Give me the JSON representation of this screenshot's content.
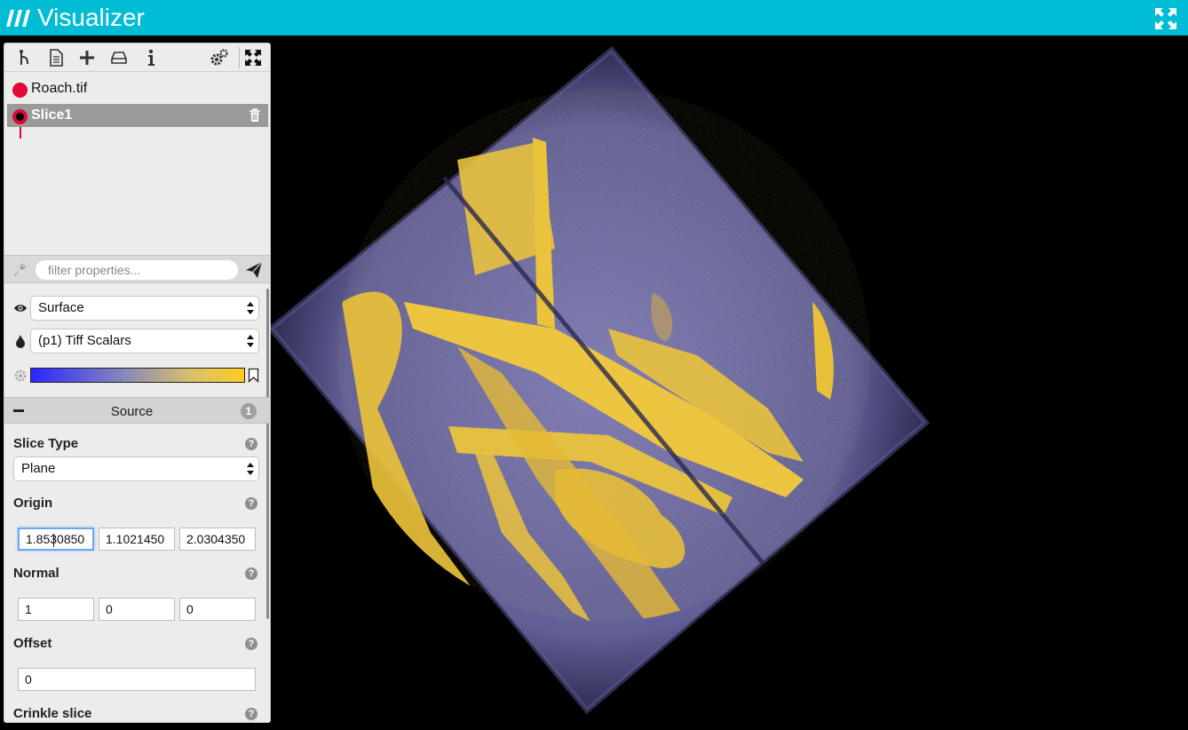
{
  "app": {
    "title": "Visualizer",
    "brand_color": "#00bcd4",
    "logo_icon": "visualizer-logo-icon",
    "fullscreen_icon": "expand-arrows-icon"
  },
  "toolbar": {
    "buttons": [
      {
        "name": "pipeline-branch",
        "icon": "branch-icon"
      },
      {
        "name": "open-file",
        "icon": "file-icon"
      },
      {
        "name": "add-filter",
        "icon": "plus-icon"
      },
      {
        "name": "save-state",
        "icon": "drive-icon"
      },
      {
        "name": "info",
        "icon": "info-icon"
      },
      {
        "name": "settings",
        "icon": "gears-icon"
      },
      {
        "name": "reset-camera",
        "icon": "fit-arrows-icon"
      }
    ]
  },
  "pipeline": {
    "items": [
      {
        "label": "Roach.tif",
        "selected": false
      },
      {
        "label": "Slice1",
        "selected": true
      }
    ],
    "link_color": "#e0073a"
  },
  "filter": {
    "placeholder": "filter properties...",
    "value": ""
  },
  "display": {
    "representation": "Surface",
    "color_by": "(p1) Tiff Scalars",
    "colormap": [
      "#2a26ff",
      "#8b8bb8",
      "#d8c06a",
      "#ffcc22"
    ]
  },
  "section": {
    "title": "Source",
    "badge": "1"
  },
  "properties": {
    "slice_type": {
      "label": "Slice Type",
      "value": "Plane"
    },
    "origin": {
      "label": "Origin",
      "values": [
        "1.8530850",
        "1.1021450",
        "2.0304350"
      ]
    },
    "normal": {
      "label": "Normal",
      "values": [
        "1",
        "0",
        "0"
      ]
    },
    "offset": {
      "label": "Offset",
      "value": "0"
    },
    "crinkle": {
      "label": "Crinkle slice"
    },
    "help_glyph": "?"
  },
  "render": {
    "background": "#000000",
    "volume_color": "#7a78b8",
    "highlight_color": "#f2c431"
  }
}
